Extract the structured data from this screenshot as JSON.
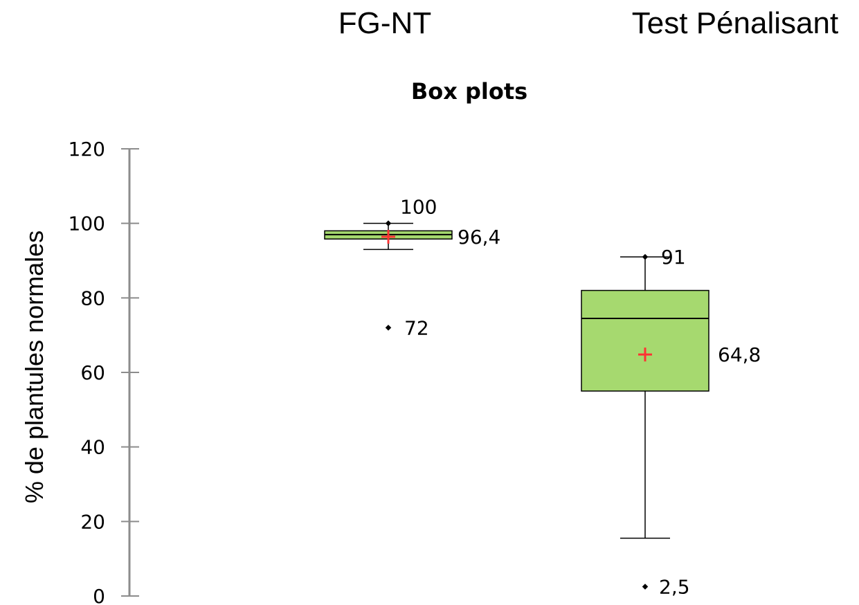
{
  "chart_data": {
    "type": "box",
    "title": "Box plots",
    "xlabel": "",
    "ylabel": "% de plantules normales",
    "ylim": [
      0,
      120
    ],
    "yticks": [
      0,
      20,
      40,
      60,
      80,
      100,
      120
    ],
    "grid": false,
    "legend": "none",
    "box_color": "#a6d96f",
    "mean_color": "#ff3333",
    "series": [
      {
        "category": "FG-NT",
        "min": 93,
        "q1": 95.8,
        "median": 97,
        "q3": 98,
        "max": 100,
        "mean": 96.4,
        "outliers": [
          72
        ],
        "labels": [
          "100",
          "96,4",
          "72"
        ]
      },
      {
        "category": "Test Pénalisant",
        "min": 15.5,
        "q1": 55,
        "median": 74.5,
        "q3": 82,
        "max": 91,
        "mean": 64.8,
        "outliers": [
          2.5
        ],
        "labels": [
          "91",
          "64,8",
          "2,5"
        ]
      }
    ]
  }
}
